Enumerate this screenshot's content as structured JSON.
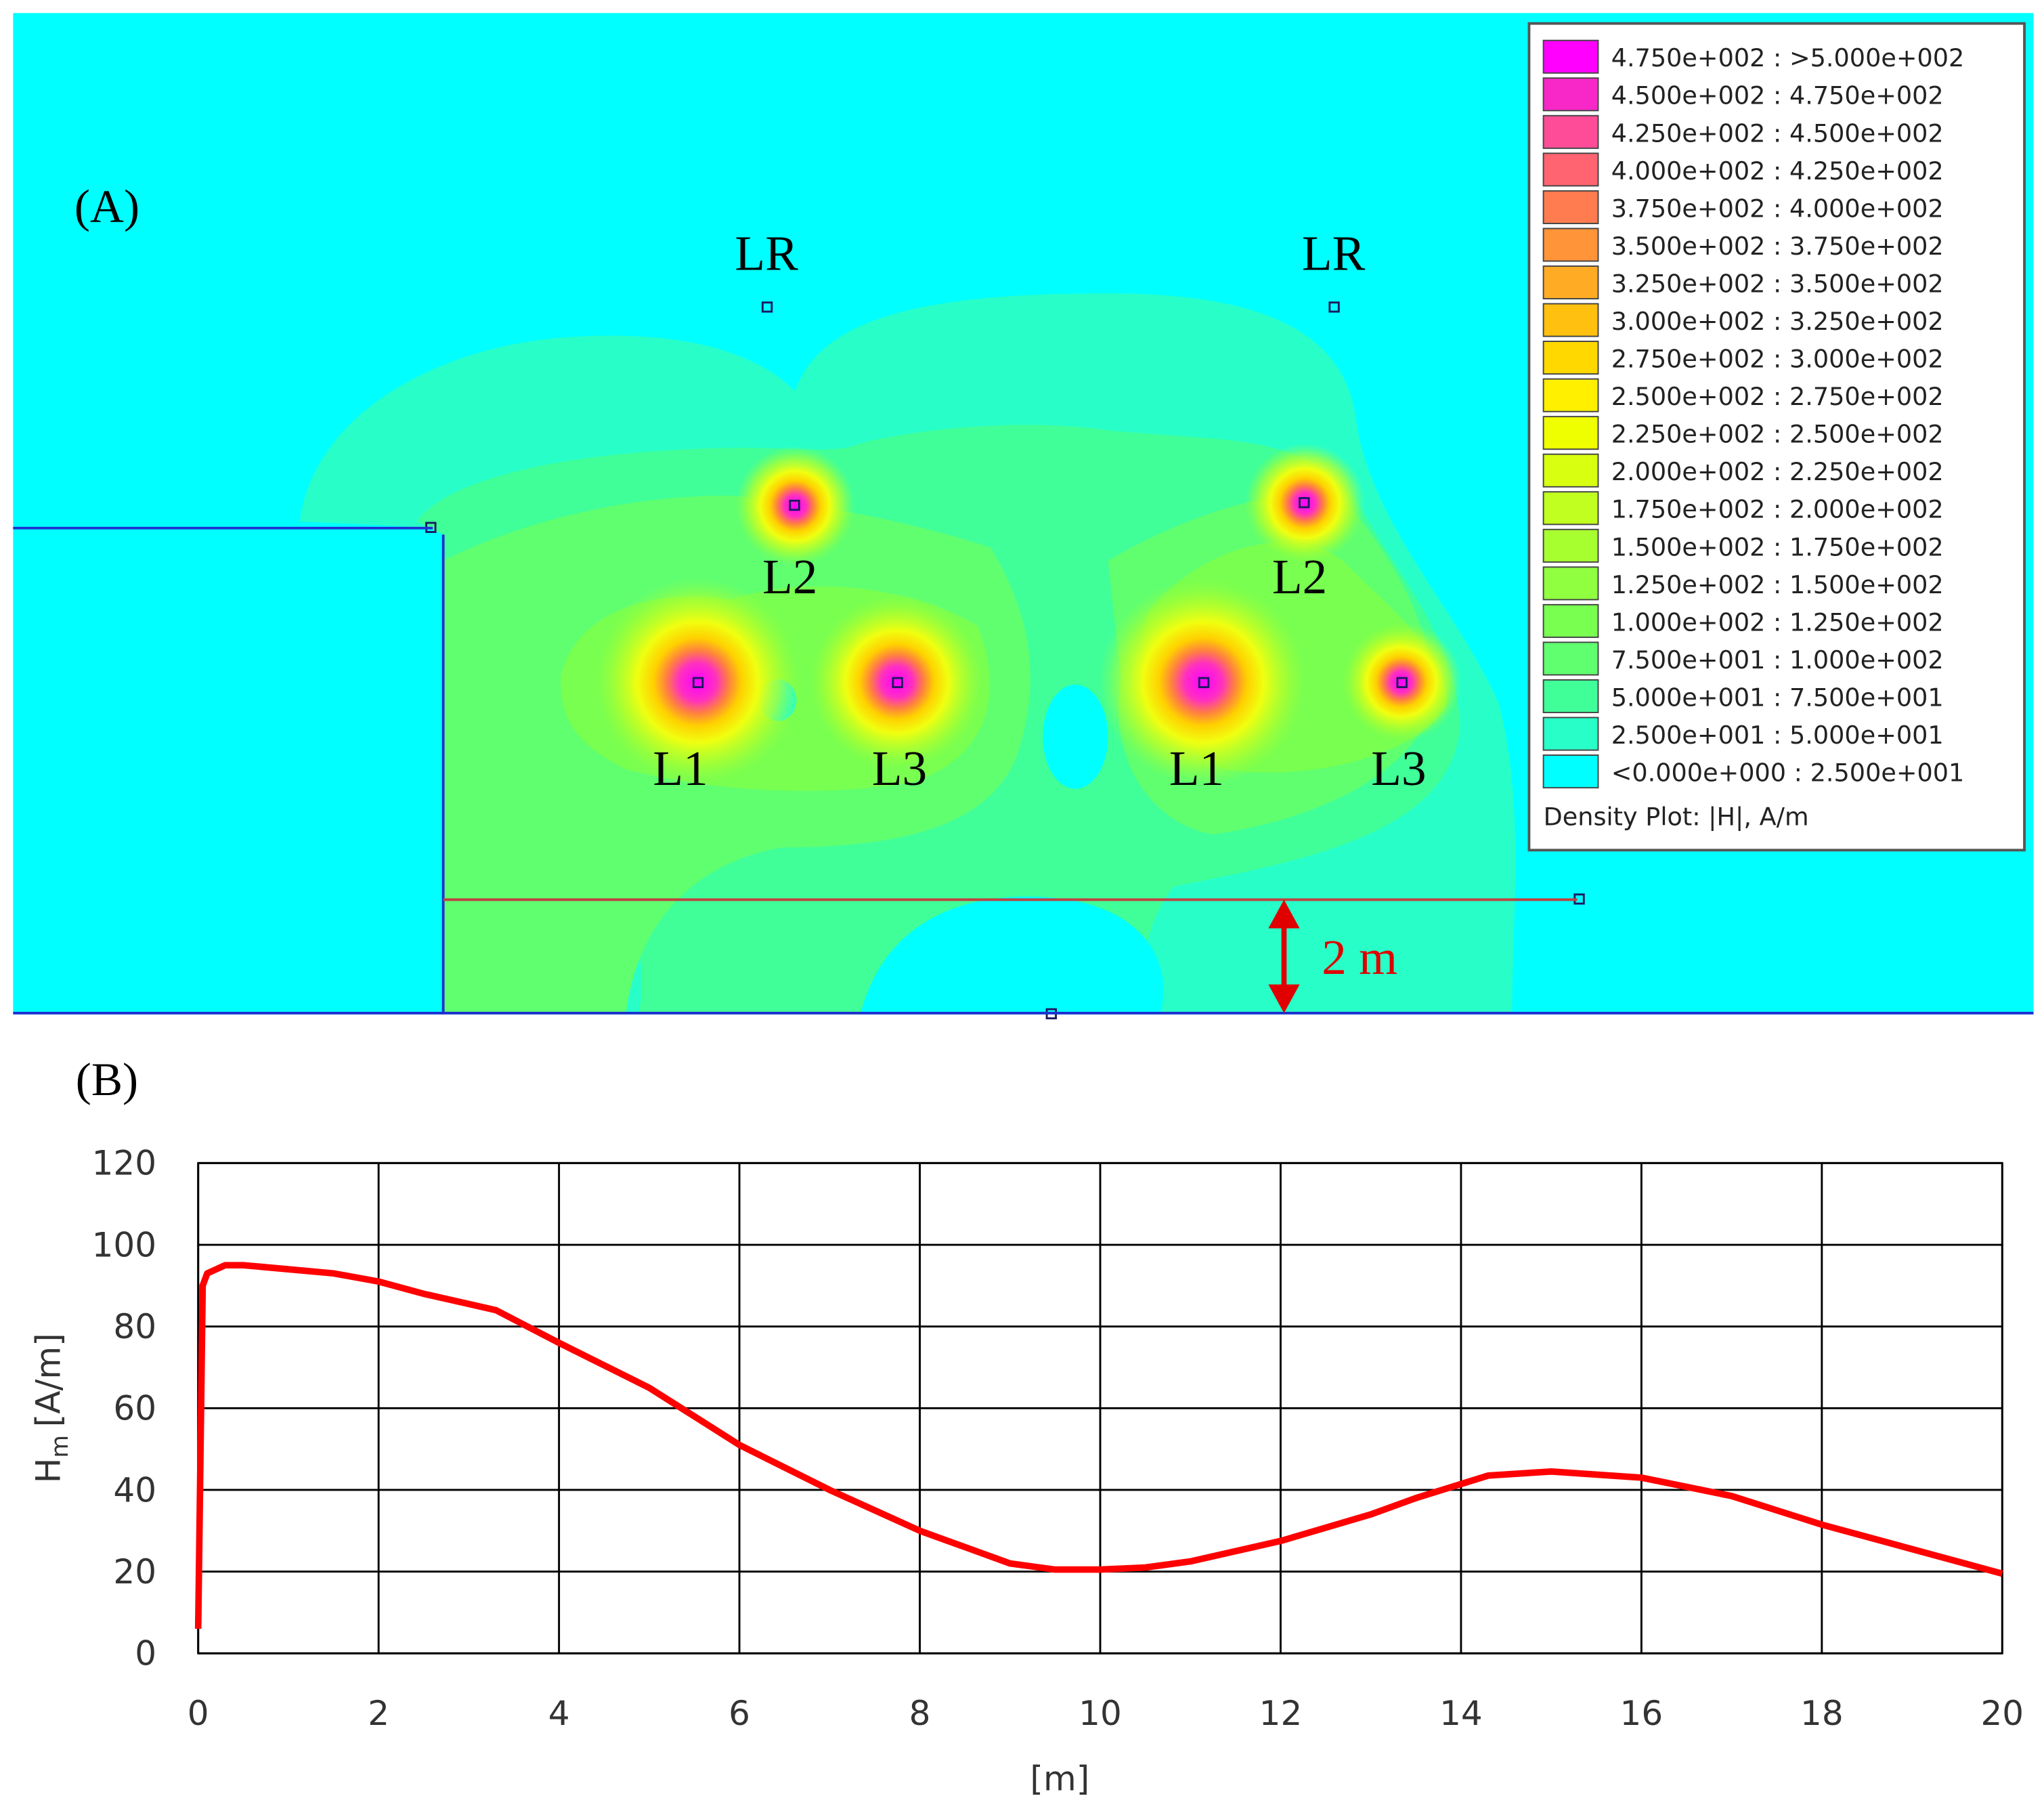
{
  "chart_data": [
    {
      "type": "density",
      "label": "(A)",
      "annotations": [
        "LR",
        "LR",
        "L2",
        "L2",
        "L1",
        "L3",
        "L1",
        "L3"
      ],
      "dimension_label": "2 m",
      "legend": {
        "title": "Density Plot: |H|, A/m",
        "entries": [
          {
            "label": "4.750e+002 : >5.000e+002",
            "color": "#ff00ff"
          },
          {
            "label": "4.500e+002 : 4.750e+002",
            "color": "#f828c8"
          },
          {
            "label": "4.250e+002 : 4.500e+002",
            "color": "#ff4c98"
          },
          {
            "label": "4.000e+002 : 4.250e+002",
            "color": "#ff6470"
          },
          {
            "label": "3.750e+002 : 4.000e+002",
            "color": "#ff7c50"
          },
          {
            "label": "3.500e+002 : 3.750e+002",
            "color": "#ff9438"
          },
          {
            "label": "3.250e+002 : 3.500e+002",
            "color": "#ffac24"
          },
          {
            "label": "3.000e+002 : 3.250e+002",
            "color": "#ffc010"
          },
          {
            "label": "2.750e+002 : 3.000e+002",
            "color": "#ffd800"
          },
          {
            "label": "2.500e+002 : 2.750e+002",
            "color": "#fff000"
          },
          {
            "label": "2.250e+002 : 2.500e+002",
            "color": "#f0ff00"
          },
          {
            "label": "2.000e+002 : 2.250e+002",
            "color": "#d8ff10"
          },
          {
            "label": "1.750e+002 : 2.000e+002",
            "color": "#c0ff20"
          },
          {
            "label": "1.500e+002 : 1.750e+002",
            "color": "#a8ff30"
          },
          {
            "label": "1.250e+002 : 1.500e+002",
            "color": "#90ff40"
          },
          {
            "label": "1.000e+002 : 1.250e+002",
            "color": "#78ff50"
          },
          {
            "label": "7.500e+001 : 1.000e+002",
            "color": "#60ff70"
          },
          {
            "label": "5.000e+001 : 7.500e+001",
            "color": "#40ff98"
          },
          {
            "label": "2.500e+001 : 5.000e+001",
            "color": "#28ffc8"
          },
          {
            "label": "<0.000e+000 : 2.500e+001",
            "color": "#00ffff"
          }
        ]
      }
    },
    {
      "type": "line",
      "label": "(B)",
      "x": [
        0,
        0.05,
        0.1,
        0.3,
        0.5,
        1,
        1.5,
        2,
        2.5,
        3,
        3.3,
        4,
        5,
        6,
        7,
        8,
        8.5,
        9,
        9.5,
        10,
        10.5,
        11,
        12,
        13,
        13.5,
        14.3,
        15,
        16,
        17,
        18,
        19,
        20
      ],
      "series": [
        {
          "color": "#ff0000",
          "values": [
            6,
            90,
            93,
            95,
            95,
            94,
            93,
            91,
            88,
            85.5,
            84,
            76,
            65,
            51,
            40,
            30,
            26,
            22,
            20.5,
            20.5,
            21,
            22.5,
            27.5,
            34,
            38,
            43.5,
            44.5,
            43,
            38.5,
            31.5,
            25.5,
            19.5
          ]
        }
      ],
      "xlim": [
        0,
        20
      ],
      "ylim": [
        0,
        120
      ],
      "xticks": [
        0,
        2,
        4,
        6,
        8,
        10,
        12,
        14,
        16,
        18,
        20
      ],
      "yticks": [
        0,
        20,
        40,
        60,
        80,
        100,
        120
      ],
      "xlabel": "[m]",
      "ylabel": {
        "symbol": "H",
        "subscript": "m",
        "unit": "[A/m]"
      },
      "grid": true
    }
  ]
}
